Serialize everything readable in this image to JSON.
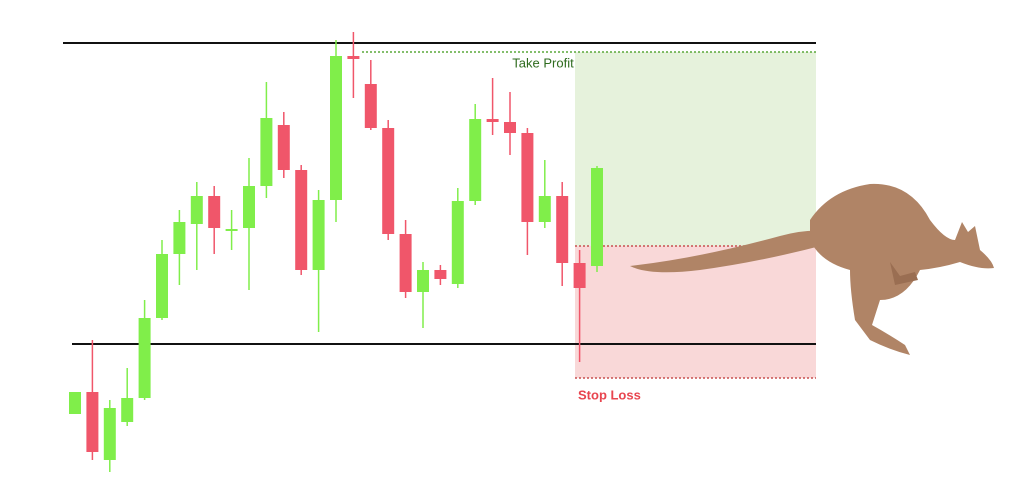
{
  "chart_data": {
    "type": "candlestick",
    "ylim": [
      0,
      480
    ],
    "up_color": "#80ee4a",
    "down_color": "#f0566a",
    "open": [
      66,
      88,
      20,
      58,
      82,
      162,
      226,
      256,
      284,
      249,
      252,
      294,
      355,
      310,
      210,
      280,
      424,
      396,
      352,
      246,
      188,
      210,
      196,
      279,
      361,
      358,
      347,
      258,
      284,
      217,
      214
    ],
    "high": [
      88,
      140,
      80,
      112,
      180,
      240,
      270,
      298,
      294,
      270,
      322,
      398,
      368,
      315,
      290,
      440,
      448,
      420,
      360,
      260,
      218,
      215,
      292,
      376,
      402,
      388,
      352,
      320,
      298,
      230,
      314
    ],
    "low": [
      66,
      20,
      8,
      54,
      80,
      160,
      195,
      210,
      226,
      230,
      190,
      282,
      302,
      205,
      148,
      258,
      382,
      350,
      240,
      182,
      152,
      195,
      192,
      275,
      345,
      325,
      225,
      252,
      194,
      118,
      208
    ],
    "close": [
      88,
      28,
      72,
      82,
      162,
      226,
      258,
      284,
      252,
      251,
      294,
      362,
      310,
      210,
      280,
      424,
      421,
      352,
      246,
      188,
      210,
      201,
      279,
      361,
      358,
      347,
      258,
      284,
      217,
      192,
      312
    ],
    "resistance": 437,
    "support": 136,
    "take_profit": {
      "label": "Take Profit",
      "value": 428,
      "color": "#2e6b1e"
    },
    "entry": 234,
    "stop_loss": {
      "label": "Stop Loss",
      "value": 102,
      "color": "#e8454f"
    }
  }
}
